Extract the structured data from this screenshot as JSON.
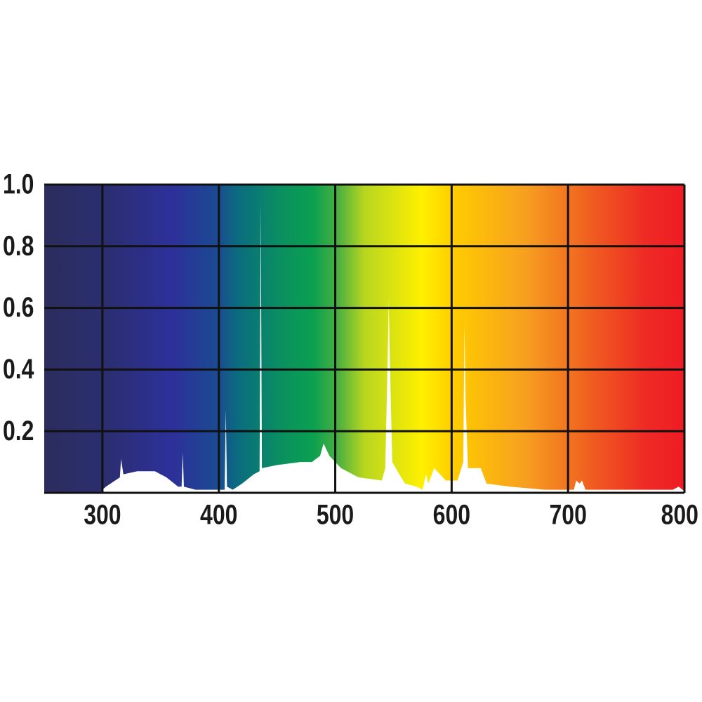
{
  "chart_data": {
    "type": "area",
    "x": [
      300,
      303,
      315,
      316,
      318,
      330,
      345,
      355,
      365,
      368,
      369,
      370,
      380,
      400,
      405,
      406,
      407,
      412,
      420,
      430,
      435,
      436,
      437,
      450,
      470,
      480,
      487,
      490,
      495,
      505,
      520,
      540,
      543,
      545,
      546,
      547,
      549,
      555,
      560,
      570,
      575,
      578,
      580,
      585,
      590,
      595,
      605,
      610,
      611,
      612,
      614,
      625,
      630,
      650,
      680,
      705,
      707,
      710,
      712,
      715,
      750,
      790,
      795,
      800
    ],
    "series": [
      {
        "color": "#ffffff",
        "values": [
          0.01,
          0.02,
          0.05,
          0.11,
          0.06,
          0.07,
          0.07,
          0.05,
          0.02,
          0.02,
          0.13,
          0.02,
          0.01,
          0.01,
          0.01,
          0.27,
          0.02,
          0.01,
          0.03,
          0.06,
          0.07,
          0.94,
          0.08,
          0.09,
          0.1,
          0.1,
          0.12,
          0.16,
          0.12,
          0.08,
          0.05,
          0.04,
          0.08,
          0.43,
          0.63,
          0.42,
          0.1,
          0.06,
          0.03,
          0.02,
          0.01,
          0.06,
          0.03,
          0.08,
          0.06,
          0.04,
          0.04,
          0.1,
          0.55,
          0.3,
          0.08,
          0.08,
          0.03,
          0.02,
          0.01,
          0.01,
          0.04,
          0.03,
          0.04,
          0.01,
          0.01,
          0.01,
          0.02,
          0.005
        ]
      }
    ],
    "xlim": [
      250,
      800
    ],
    "ylim": [
      0,
      1
    ],
    "xticks": [
      300,
      400,
      500,
      600,
      700,
      800
    ],
    "yticks": [
      0.2,
      0.4,
      0.6,
      0.8,
      {
        "value": 1,
        "label": "1.0"
      }
    ],
    "grid": true,
    "grid_color": "#111111"
  }
}
